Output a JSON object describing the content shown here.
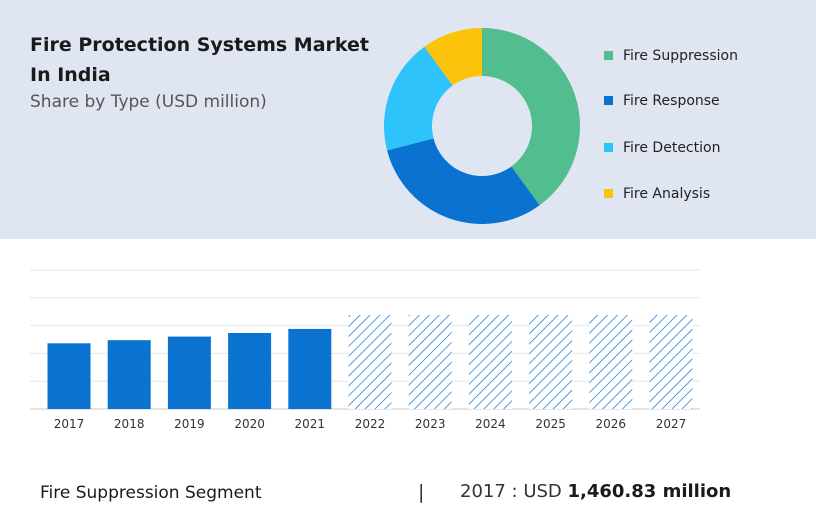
{
  "header": {
    "title": "Fire Protection Systems Market In India",
    "subtitle": "Share by Type (USD million)"
  },
  "chart_data": [
    {
      "type": "pie",
      "donut": true,
      "title": "",
      "legend_position": "right",
      "slices": [
        {
          "label": "Fire Suppression",
          "value": 40,
          "color": "#52bd8f"
        },
        {
          "label": "Fire Response",
          "value": 31,
          "color": "#0a73d2"
        },
        {
          "label": "Fire Detection",
          "value": 19,
          "color": "#2ec4fb"
        },
        {
          "label": "Fire Analysis",
          "value": 10,
          "color": "#fbc30b"
        }
      ]
    },
    {
      "type": "bar",
      "title": "",
      "xlabel": "",
      "ylabel": "",
      "categories": [
        "2017",
        "2018",
        "2019",
        "2020",
        "2021",
        "2022",
        "2023",
        "2024",
        "2025",
        "2026",
        "2027"
      ],
      "values": [
        1460.83,
        1530,
        1610,
        1690,
        1780,
        2090,
        2090,
        2090,
        2090,
        2090,
        2090
      ],
      "forecast_from": "2022",
      "ylim": [
        0,
        3090
      ],
      "grid": true,
      "colors": {
        "actual": "#0a73d2",
        "forecast_hatch": "#0a73d2"
      }
    }
  ],
  "footer": {
    "segment_label": "Fire Suppression Segment",
    "separator": "|",
    "value_prefix": "2017 : USD ",
    "value_bold": "1,460.83 million"
  }
}
